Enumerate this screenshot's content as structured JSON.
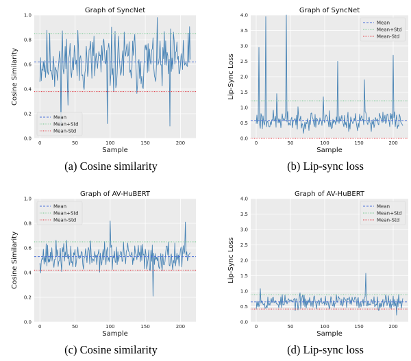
{
  "chart_data": [
    {
      "id": "a",
      "type": "line",
      "title": "Graph of SyncNet",
      "xlabel": "Sample",
      "ylabel": "Cosine Similarity",
      "caption": "(a) Cosine similarity",
      "xlim": [
        -8,
        222
      ],
      "ylim": [
        0.0,
        1.0
      ],
      "xticks": [
        "0",
        "50",
        "100",
        "150",
        "200"
      ],
      "yticks": [
        "0.0",
        "0.2",
        "0.4",
        "0.6",
        "0.8",
        "1.0"
      ],
      "n_points": 215,
      "stats": {
        "mean": 0.62,
        "mean_plus_std": 0.85,
        "mean_minus_std": 0.38
      },
      "seed": 11,
      "noise": {
        "spread": 0.24,
        "min": 0.08,
        "max": 0.98
      },
      "spikes": [
        [
          30,
          0.09
        ],
        [
          96,
          0.12
        ],
        [
          185,
          0.1
        ]
      ],
      "legend": [
        "Mean",
        "Mean+Std",
        "Mean-Std"
      ],
      "legend_loc": "lower-left",
      "grid": true
    },
    {
      "id": "b",
      "type": "line",
      "title": "Graph of SyncNet",
      "xlabel": "Sample",
      "ylabel": "Lip-Sync Loss",
      "caption": "(b) Lip-sync loss",
      "xlim": [
        -8,
        222
      ],
      "ylim": [
        0.0,
        4.0
      ],
      "xticks": [
        "0",
        "50",
        "100",
        "150",
        "200"
      ],
      "yticks": [
        "0.0",
        "0.5",
        "1.0",
        "1.5",
        "2.0",
        "2.5",
        "3.0",
        "3.5",
        "4.0"
      ],
      "n_points": 215,
      "stats": {
        "mean": 0.58,
        "mean_plus_std": 1.22,
        "mean_minus_std": 0.0
      },
      "seed": 23,
      "noise": {
        "spread": 0.3,
        "min": 0.04,
        "max": 1.3
      },
      "spikes": [
        [
          4,
          2.95
        ],
        [
          14,
          3.95
        ],
        [
          30,
          1.45
        ],
        [
          44,
          4.0
        ],
        [
          98,
          1.35
        ],
        [
          119,
          2.5
        ],
        [
          158,
          1.9
        ],
        [
          200,
          2.7
        ]
      ],
      "legend": [
        "Mean",
        "Mean+Std",
        "Mean-Std"
      ],
      "legend_loc": "upper-right",
      "grid": true
    },
    {
      "id": "c",
      "type": "line",
      "title": "Graph of AV-HuBERT",
      "xlabel": "Sample",
      "ylabel": "Cosine Similarity",
      "caption": "(c) Cosine similarity",
      "xlim": [
        -8,
        222
      ],
      "ylim": [
        0.0,
        1.0
      ],
      "xticks": [
        "0",
        "50",
        "100",
        "150",
        "200"
      ],
      "yticks": [
        "0.0",
        "0.2",
        "0.4",
        "0.6",
        "0.8",
        "1.0"
      ],
      "n_points": 215,
      "stats": {
        "mean": 0.53,
        "mean_plus_std": 0.65,
        "mean_minus_std": 0.42
      },
      "seed": 37,
      "noise": {
        "spread": 0.11,
        "min": 0.25,
        "max": 0.8
      },
      "spikes": [
        [
          100,
          0.82
        ],
        [
          161,
          0.21
        ],
        [
          207,
          0.81
        ]
      ],
      "legend": [
        "Mean",
        "Mean+Std",
        "Mean-Std"
      ],
      "legend_loc": "upper-left",
      "grid": true
    },
    {
      "id": "d",
      "type": "line",
      "title": "Graph of AV-HuBERT",
      "xlabel": "Sample",
      "ylabel": "Lip-Sync Loss",
      "caption": "(d) Lip-sync loss",
      "xlim": [
        -8,
        222
      ],
      "ylim": [
        0.0,
        4.0
      ],
      "xticks": [
        "0",
        "50",
        "100",
        "150",
        "200"
      ],
      "yticks": [
        "0.0",
        "0.5",
        "1.0",
        "1.5",
        "2.0",
        "2.5",
        "3.0",
        "3.5",
        "4.0"
      ],
      "n_points": 215,
      "stats": {
        "mean": 0.65,
        "mean_plus_std": 0.88,
        "mean_minus_std": 0.42
      },
      "seed": 53,
      "noise": {
        "spread": 0.22,
        "min": 0.22,
        "max": 1.2
      },
      "spikes": [
        [
          6,
          1.08
        ],
        [
          160,
          1.58
        ],
        [
          205,
          0.22
        ]
      ],
      "legend": [
        "Mean",
        "Mean+Std",
        "Mean-Std"
      ],
      "legend_loc": "upper-right",
      "grid": true
    }
  ],
  "colors": {
    "series": "#4682b4",
    "mean": "#4a6fd8",
    "mean_plus_std": "#6cc58a",
    "mean_minus_std": "#e0303a",
    "panel_bg": "#ebebeb",
    "grid": "#ffffff"
  }
}
